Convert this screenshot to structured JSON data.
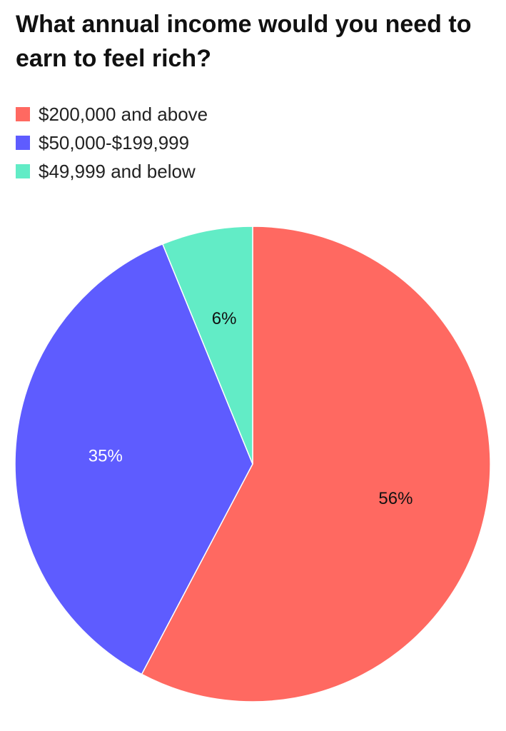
{
  "chart_data": {
    "type": "pie",
    "title": "What annual income would you need to earn to feel rich?",
    "legend_position": "top-left",
    "slices": [
      {
        "label": "$200,000 and above",
        "value": 56,
        "value_label": "56%",
        "color": "#ff6961",
        "label_color": "#111111"
      },
      {
        "label": "$50,000-$199,999",
        "value": 35,
        "value_label": "35%",
        "color": "#5e5cff",
        "label_color": "#ffffff"
      },
      {
        "label": "$49,999 and below",
        "value": 6,
        "value_label": "6%",
        "color": "#62ecc6",
        "label_color": "#111111"
      }
    ]
  }
}
